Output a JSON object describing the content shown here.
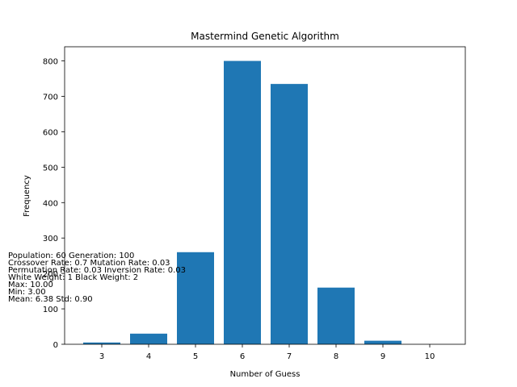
{
  "chart_data": {
    "type": "bar",
    "title": "Mastermind Genetic Algorithm",
    "xlabel": "Number of Guess",
    "ylabel": "Frequency",
    "categories": [
      "3",
      "4",
      "5",
      "6",
      "7",
      "8",
      "9",
      "10"
    ],
    "values": [
      5,
      30,
      260,
      800,
      735,
      160,
      10,
      0
    ],
    "ylim": [
      0,
      840
    ],
    "yticks": [
      0,
      100,
      200,
      300,
      400,
      500,
      600,
      700,
      800
    ],
    "bar_color": "#1f77b4",
    "grid": false,
    "annotations": [
      "Population: 60 Generation: 100",
      "Crossover Rate: 0.7 Mutation Rate: 0.03",
      "Permutation Rate: 0.03 Inversion Rate: 0.03",
      "White Weight: 1 Black Weight: 2",
      "Max: 10.00",
      "Min: 3.00",
      "Mean: 6.38 Std: 0.90"
    ]
  }
}
